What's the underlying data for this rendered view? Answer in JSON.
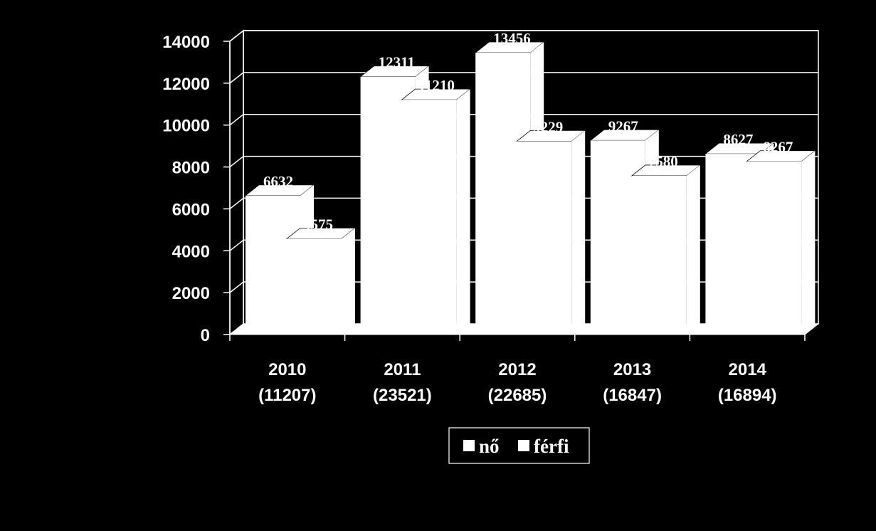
{
  "chart_data": {
    "type": "bar",
    "categories": [
      "2010\n(11207)",
      "2011\n(23521)",
      "2012\n(22685)",
      "2013\n(16847)",
      "2014\n(16894)"
    ],
    "series": [
      {
        "name": "nő",
        "values": [
          6632,
          12311,
          13456,
          9267,
          8627
        ]
      },
      {
        "name": "férfi",
        "values": [
          4575,
          11210,
          9229,
          7580,
          8267
        ]
      }
    ],
    "ylim": [
      0,
      14000
    ],
    "yticks": [
      0,
      2000,
      4000,
      6000,
      8000,
      10000,
      12000,
      14000
    ],
    "grid": true,
    "legend_position": "bottom",
    "style_3d": true,
    "colors": {
      "background": "#000000",
      "bar_fill": "#ffffff",
      "axis": "#ffffff",
      "grid": "#ffffff",
      "text": "#ffffff"
    }
  }
}
